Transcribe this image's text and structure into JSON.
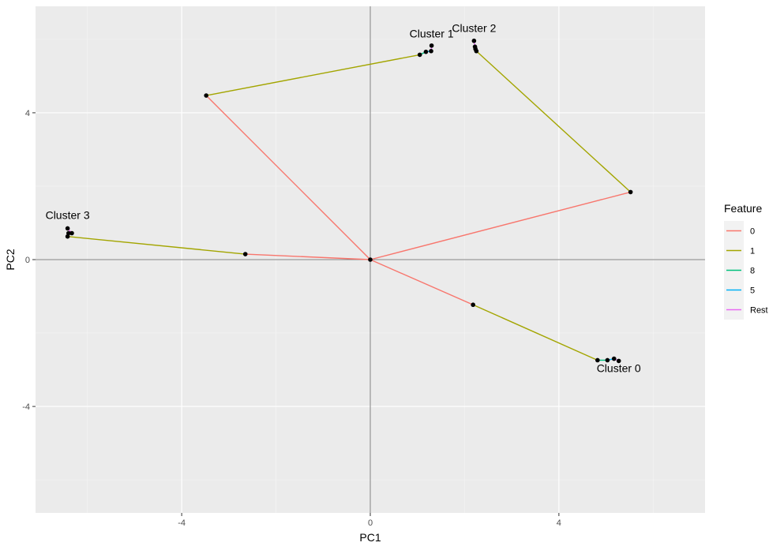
{
  "chart_data": {
    "type": "line",
    "title": "",
    "xlabel": "PC1",
    "ylabel": "PC2",
    "xlim": [
      -7.1,
      7.1
    ],
    "ylim": [
      -6.9,
      6.9
    ],
    "x_ticks": [
      -4,
      0,
      4
    ],
    "y_ticks": [
      -4,
      0,
      4
    ],
    "x_tick_labels": [
      "-4",
      "0",
      "4"
    ],
    "y_tick_labels": [
      "-4",
      "0",
      "4"
    ],
    "grid": true,
    "reference_lines": {
      "x": 0,
      "y": 0
    },
    "legend": {
      "title": "Feature",
      "position": "right",
      "entries": [
        {
          "label": "0",
          "color": "#F8766D"
        },
        {
          "label": "1",
          "color": "#A3A500"
        },
        {
          "label": "8",
          "color": "#00BF7D"
        },
        {
          "label": "5",
          "color": "#00B0F6"
        },
        {
          "label": "Rest",
          "color": "#E76BF3"
        }
      ]
    },
    "series": [
      {
        "name": "0",
        "color": "#F8766D",
        "segments": [
          {
            "x": [
              0,
              -3.48
            ],
            "y": [
              0,
              4.47
            ]
          },
          {
            "x": [
              0,
              5.52
            ],
            "y": [
              0,
              1.84
            ]
          },
          {
            "x": [
              0,
              2.18
            ],
            "y": [
              0,
              -1.23
            ]
          },
          {
            "x": [
              0,
              -2.65
            ],
            "y": [
              0,
              0.15
            ]
          }
        ]
      },
      {
        "name": "1",
        "color": "#A3A500",
        "segments": [
          {
            "x": [
              -3.48,
              1.05
            ],
            "y": [
              4.47,
              5.58
            ]
          },
          {
            "x": [
              5.52,
              2.25
            ],
            "y": [
              1.84,
              5.68
            ]
          },
          {
            "x": [
              2.18,
              4.82
            ],
            "y": [
              -1.23,
              -2.74
            ]
          },
          {
            "x": [
              -2.65,
              -6.42
            ],
            "y": [
              0.15,
              0.63
            ]
          }
        ]
      },
      {
        "name": "8",
        "color": "#00BF7D",
        "segments": [
          {
            "x": [
              1.05,
              1.18
            ],
            "y": [
              5.58,
              5.66
            ]
          },
          {
            "x": [
              2.25,
              2.23
            ],
            "y": [
              5.68,
              5.74
            ]
          },
          {
            "x": [
              4.82,
              5.03
            ],
            "y": [
              -2.74,
              -2.74
            ]
          },
          {
            "x": [
              -6.42,
              -6.4
            ],
            "y": [
              0.63,
              0.72
            ]
          }
        ]
      },
      {
        "name": "5",
        "color": "#00B0F6",
        "segments": [
          {
            "x": [
              1.18,
              1.29
            ],
            "y": [
              5.66,
              5.68
            ]
          },
          {
            "x": [
              2.23,
              2.22
            ],
            "y": [
              5.74,
              5.8
            ]
          },
          {
            "x": [
              5.03,
              5.17
            ],
            "y": [
              -2.74,
              -2.7
            ]
          },
          {
            "x": [
              -6.4,
              -6.33
            ],
            "y": [
              0.72,
              0.72
            ]
          }
        ]
      },
      {
        "name": "Rest",
        "color": "#E76BF3",
        "segments": [
          {
            "x": [
              1.29,
              1.3
            ],
            "y": [
              5.68,
              5.83
            ]
          },
          {
            "x": [
              2.22,
              2.2
            ],
            "y": [
              5.8,
              5.96
            ]
          },
          {
            "x": [
              5.17,
              5.27
            ],
            "y": [
              -2.7,
              -2.76
            ]
          },
          {
            "x": [
              -6.33,
              -6.42
            ],
            "y": [
              0.72,
              0.85
            ]
          }
        ]
      }
    ],
    "points": [
      {
        "x": 0,
        "y": 0
      },
      {
        "x": -3.48,
        "y": 4.47
      },
      {
        "x": 1.05,
        "y": 5.58
      },
      {
        "x": 1.18,
        "y": 5.66
      },
      {
        "x": 1.29,
        "y": 5.68
      },
      {
        "x": 1.3,
        "y": 5.83
      },
      {
        "x": 5.52,
        "y": 1.84
      },
      {
        "x": 2.25,
        "y": 5.68
      },
      {
        "x": 2.23,
        "y": 5.74
      },
      {
        "x": 2.22,
        "y": 5.8
      },
      {
        "x": 2.2,
        "y": 5.96
      },
      {
        "x": 2.18,
        "y": -1.23
      },
      {
        "x": 4.82,
        "y": -2.74
      },
      {
        "x": 5.03,
        "y": -2.74
      },
      {
        "x": 5.17,
        "y": -2.7
      },
      {
        "x": 5.27,
        "y": -2.76
      },
      {
        "x": -2.65,
        "y": 0.15
      },
      {
        "x": -6.42,
        "y": 0.63
      },
      {
        "x": -6.4,
        "y": 0.72
      },
      {
        "x": -6.33,
        "y": 0.72
      },
      {
        "x": -6.42,
        "y": 0.85
      }
    ],
    "annotations": [
      {
        "text": "Cluster 1",
        "x": 1.3,
        "y": 6.05,
        "anchor": "middle"
      },
      {
        "text": "Cluster 2",
        "x": 2.2,
        "y": 6.2,
        "anchor": "middle"
      },
      {
        "text": "Cluster 3",
        "x": -6.42,
        "y": 1.11,
        "anchor": "middle"
      },
      {
        "text": "Cluster 0",
        "x": 5.27,
        "y": -3.06,
        "anchor": "middle"
      }
    ]
  }
}
